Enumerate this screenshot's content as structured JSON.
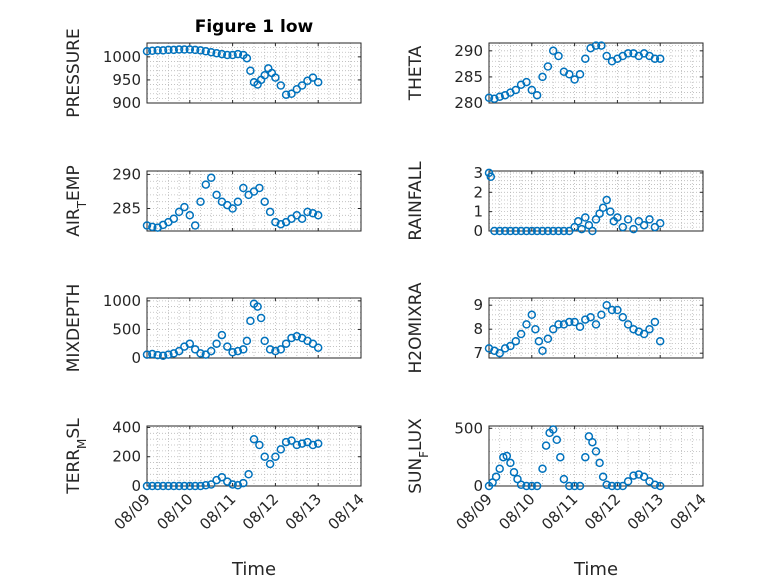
{
  "figure": {
    "title": "Figure 1 low",
    "xlabel": "Time"
  },
  "colors": {
    "marker": "#0072BD",
    "axis": "#262626",
    "grid": "#b9b9b9",
    "background": "#ffffff"
  },
  "chart_data": [
    {
      "type": "scatter",
      "ylabel": "PRESSURE",
      "title": "Figure 1 low",
      "grid": true,
      "marker": "o",
      "ylim": [
        900,
        1030
      ],
      "yticks": [
        900,
        950,
        1000
      ],
      "ytick_labels": [
        "900",
        "950",
        "1000"
      ],
      "xlim": [
        "08/09",
        "08/14"
      ],
      "xticks": [
        "08/09",
        "08/10",
        "08/11",
        "08/12",
        "08/13",
        "08/14"
      ],
      "x": [
        "08/09 00:00",
        "08/09 03:00",
        "08/09 06:00",
        "08/09 09:00",
        "08/09 12:00",
        "08/09 15:00",
        "08/09 18:00",
        "08/09 21:00",
        "08/10 00:00",
        "08/10 03:00",
        "08/10 06:00",
        "08/10 09:00",
        "08/10 12:00",
        "08/10 15:00",
        "08/10 18:00",
        "08/10 21:00",
        "08/11 00:00",
        "08/11 03:00",
        "08/11 06:00",
        "08/11 08:00",
        "08/11 10:00",
        "08/11 12:00",
        "08/11 14:00",
        "08/11 16:00",
        "08/11 18:00",
        "08/11 20:00",
        "08/11 22:00",
        "08/12 00:00",
        "08/12 03:00",
        "08/12 06:00",
        "08/12 09:00",
        "08/12 12:00",
        "08/12 15:00",
        "08/12 18:00",
        "08/12 21:00",
        "08/13 00:00"
      ],
      "y": [
        1012,
        1013,
        1014,
        1014,
        1015,
        1015,
        1016,
        1016,
        1016,
        1015,
        1014,
        1012,
        1010,
        1008,
        1006,
        1004,
        1004,
        1006,
        1004,
        997,
        970,
        945,
        940,
        950,
        960,
        975,
        965,
        955,
        938,
        918,
        920,
        930,
        938,
        948,
        955,
        945
      ]
    },
    {
      "type": "scatter",
      "ylabel": "THETA",
      "grid": true,
      "marker": "o",
      "ylim": [
        280,
        291.5
      ],
      "yticks": [
        280,
        285,
        290
      ],
      "ytick_labels": [
        "280",
        "285",
        "290"
      ],
      "xlim": [
        "08/09",
        "08/14"
      ],
      "xticks": [
        "08/09",
        "08/10",
        "08/11",
        "08/12",
        "08/13",
        "08/14"
      ],
      "x": [
        "08/09 00:00",
        "08/09 03:00",
        "08/09 06:00",
        "08/09 09:00",
        "08/09 12:00",
        "08/09 15:00",
        "08/09 18:00",
        "08/09 21:00",
        "08/10 00:00",
        "08/10 03:00",
        "08/10 06:00",
        "08/10 09:00",
        "08/10 12:00",
        "08/10 15:00",
        "08/10 18:00",
        "08/10 21:00",
        "08/11 00:00",
        "08/11 03:00",
        "08/11 06:00",
        "08/11 09:00",
        "08/11 12:00",
        "08/11 15:00",
        "08/11 18:00",
        "08/11 21:00",
        "08/12 00:00",
        "08/12 03:00",
        "08/12 06:00",
        "08/12 09:00",
        "08/12 12:00",
        "08/12 15:00",
        "08/12 18:00",
        "08/12 21:00",
        "08/13 00:00"
      ],
      "y": [
        281,
        280.8,
        281.2,
        281.5,
        282,
        282.5,
        283.5,
        284,
        282.5,
        281.5,
        285,
        287,
        290,
        289,
        286,
        285.5,
        284.5,
        285.5,
        288.5,
        290.5,
        291,
        291,
        289,
        288,
        288.5,
        289,
        289.5,
        289.5,
        289,
        289.5,
        289,
        288.5,
        288.5
      ]
    },
    {
      "type": "scatter",
      "ylabel": "AIR_TEMP",
      "grid": true,
      "marker": "o",
      "ylim": [
        281.7,
        290.5
      ],
      "yticks": [
        285,
        290
      ],
      "ytick_labels": [
        "285",
        "290"
      ],
      "xlim": [
        "08/09",
        "08/14"
      ],
      "xticks": [
        "08/09",
        "08/10",
        "08/11",
        "08/12",
        "08/13",
        "08/14"
      ],
      "x": [
        "08/09 00:00",
        "08/09 03:00",
        "08/09 06:00",
        "08/09 09:00",
        "08/09 12:00",
        "08/09 15:00",
        "08/09 18:00",
        "08/09 21:00",
        "08/10 00:00",
        "08/10 03:00",
        "08/10 06:00",
        "08/10 09:00",
        "08/10 12:00",
        "08/10 15:00",
        "08/10 18:00",
        "08/10 21:00",
        "08/11 00:00",
        "08/11 03:00",
        "08/11 06:00",
        "08/11 09:00",
        "08/11 12:00",
        "08/11 15:00",
        "08/11 18:00",
        "08/11 21:00",
        "08/12 00:00",
        "08/12 03:00",
        "08/12 06:00",
        "08/12 09:00",
        "08/12 12:00",
        "08/12 15:00",
        "08/12 18:00",
        "08/12 21:00",
        "08/13 00:00"
      ],
      "y": [
        282.5,
        282.3,
        282.2,
        282.6,
        283,
        283.5,
        284.5,
        285.2,
        284,
        282.5,
        286,
        288.5,
        289.5,
        287,
        286,
        285.5,
        285,
        286,
        288,
        287,
        287.5,
        288,
        286,
        284.5,
        283,
        282.7,
        283,
        283.5,
        284,
        283.5,
        284.5,
        284.3,
        284
      ]
    },
    {
      "type": "scatter",
      "ylabel": "RAINFALL",
      "grid": true,
      "marker": "o",
      "ylim": [
        0,
        3.1
      ],
      "yticks": [
        0,
        1,
        2,
        3
      ],
      "ytick_labels": [
        "0",
        "1",
        "2",
        "3"
      ],
      "xlim": [
        "08/09",
        "08/14"
      ],
      "xticks": [
        "08/09",
        "08/10",
        "08/11",
        "08/12",
        "08/13",
        "08/14"
      ],
      "x": [
        "08/09 00:00",
        "08/09 01:00",
        "08/09 03:00",
        "08/09 06:00",
        "08/09 09:00",
        "08/09 12:00",
        "08/09 15:00",
        "08/09 18:00",
        "08/09 21:00",
        "08/10 00:00",
        "08/10 03:00",
        "08/10 06:00",
        "08/10 09:00",
        "08/10 12:00",
        "08/10 15:00",
        "08/10 18:00",
        "08/10 21:00",
        "08/11 00:00",
        "08/11 02:00",
        "08/11 04:00",
        "08/11 06:00",
        "08/11 08:00",
        "08/11 10:00",
        "08/11 12:00",
        "08/11 14:00",
        "08/11 16:00",
        "08/11 18:00",
        "08/11 20:00",
        "08/11 22:00",
        "08/12 00:00",
        "08/12 03:00",
        "08/12 06:00",
        "08/12 09:00",
        "08/12 12:00",
        "08/12 15:00",
        "08/12 18:00",
        "08/12 21:00",
        "08/13 00:00"
      ],
      "y": [
        3,
        2.8,
        0,
        0,
        0,
        0,
        0,
        0,
        0,
        0,
        0,
        0,
        0,
        0,
        0,
        0,
        0,
        0.2,
        0.5,
        0.1,
        0.7,
        0.3,
        0,
        0.6,
        0.9,
        1.2,
        1.6,
        1.0,
        0.5,
        0.7,
        0.2,
        0.6,
        0.1,
        0.5,
        0.3,
        0.6,
        0.2,
        0.4
      ]
    },
    {
      "type": "scatter",
      "ylabel": "MIXDEPTH",
      "grid": true,
      "marker": "o",
      "ylim": [
        0,
        1050
      ],
      "yticks": [
        0,
        500,
        1000
      ],
      "ytick_labels": [
        "0",
        "500",
        "1000"
      ],
      "xlim": [
        "08/09",
        "08/14"
      ],
      "xticks": [
        "08/09",
        "08/10",
        "08/11",
        "08/12",
        "08/13",
        "08/14"
      ],
      "x": [
        "08/09 00:00",
        "08/09 03:00",
        "08/09 06:00",
        "08/09 09:00",
        "08/09 12:00",
        "08/09 15:00",
        "08/09 18:00",
        "08/09 21:00",
        "08/10 00:00",
        "08/10 03:00",
        "08/10 06:00",
        "08/10 09:00",
        "08/10 12:00",
        "08/10 15:00",
        "08/10 18:00",
        "08/10 21:00",
        "08/11 00:00",
        "08/11 03:00",
        "08/11 06:00",
        "08/11 08:00",
        "08/11 10:00",
        "08/11 12:00",
        "08/11 14:00",
        "08/11 16:00",
        "08/11 18:00",
        "08/11 21:00",
        "08/12 00:00",
        "08/12 03:00",
        "08/12 06:00",
        "08/12 09:00",
        "08/12 12:00",
        "08/12 15:00",
        "08/12 18:00",
        "08/12 21:00",
        "08/13 00:00"
      ],
      "y": [
        60,
        70,
        50,
        40,
        60,
        80,
        120,
        200,
        250,
        150,
        80,
        60,
        120,
        250,
        400,
        200,
        100,
        120,
        150,
        300,
        650,
        950,
        900,
        700,
        300,
        150,
        120,
        150,
        250,
        350,
        380,
        350,
        300,
        250,
        180
      ]
    },
    {
      "type": "scatter",
      "ylabel": "H2OMIXRA",
      "grid": true,
      "marker": "o",
      "ylim": [
        6.8,
        9.3
      ],
      "yticks": [
        7,
        8,
        9
      ],
      "ytick_labels": [
        "7",
        "8",
        "9"
      ],
      "xlim": [
        "08/09",
        "08/14"
      ],
      "xticks": [
        "08/09",
        "08/10",
        "08/11",
        "08/12",
        "08/13",
        "08/14"
      ],
      "x": [
        "08/09 00:00",
        "08/09 03:00",
        "08/09 06:00",
        "08/09 09:00",
        "08/09 12:00",
        "08/09 15:00",
        "08/09 18:00",
        "08/09 21:00",
        "08/10 00:00",
        "08/10 02:00",
        "08/10 04:00",
        "08/10 06:00",
        "08/10 09:00",
        "08/10 12:00",
        "08/10 15:00",
        "08/10 18:00",
        "08/10 21:00",
        "08/11 00:00",
        "08/11 03:00",
        "08/11 06:00",
        "08/11 09:00",
        "08/11 12:00",
        "08/11 15:00",
        "08/11 18:00",
        "08/11 21:00",
        "08/12 00:00",
        "08/12 03:00",
        "08/12 06:00",
        "08/12 09:00",
        "08/12 12:00",
        "08/12 15:00",
        "08/12 18:00",
        "08/12 21:00",
        "08/13 00:00"
      ],
      "y": [
        7.2,
        7.1,
        7.0,
        7.2,
        7.3,
        7.5,
        7.8,
        8.2,
        8.6,
        8.0,
        7.5,
        7.1,
        7.6,
        8.0,
        8.2,
        8.2,
        8.3,
        8.3,
        8.1,
        8.4,
        8.5,
        8.2,
        8.6,
        9.0,
        8.8,
        8.8,
        8.5,
        8.2,
        8.0,
        7.9,
        7.8,
        8.0,
        8.3,
        7.5
      ]
    },
    {
      "type": "scatter",
      "ylabel": "TERR_MSL",
      "grid": true,
      "marker": "o",
      "ylim": [
        0,
        410
      ],
      "yticks": [
        0,
        200,
        400
      ],
      "ytick_labels": [
        "0",
        "200",
        "400"
      ],
      "xlim": [
        "08/09",
        "08/14"
      ],
      "xticks": [
        "08/09",
        "08/10",
        "08/11",
        "08/12",
        "08/13",
        "08/14"
      ],
      "x": [
        "08/09 00:00",
        "08/09 03:00",
        "08/09 06:00",
        "08/09 09:00",
        "08/09 12:00",
        "08/09 15:00",
        "08/09 18:00",
        "08/09 21:00",
        "08/10 00:00",
        "08/10 03:00",
        "08/10 06:00",
        "08/10 09:00",
        "08/10 12:00",
        "08/10 15:00",
        "08/10 18:00",
        "08/10 21:00",
        "08/11 00:00",
        "08/11 03:00",
        "08/11 06:00",
        "08/11 09:00",
        "08/11 12:00",
        "08/11 15:00",
        "08/11 18:00",
        "08/11 21:00",
        "08/12 00:00",
        "08/12 03:00",
        "08/12 06:00",
        "08/12 09:00",
        "08/12 12:00",
        "08/12 15:00",
        "08/12 18:00",
        "08/12 21:00",
        "08/13 00:00"
      ],
      "y": [
        0,
        0,
        0,
        0,
        0,
        0,
        0,
        0,
        0,
        0,
        0,
        5,
        10,
        40,
        60,
        30,
        10,
        5,
        20,
        80,
        320,
        280,
        200,
        150,
        200,
        250,
        300,
        310,
        280,
        290,
        300,
        280,
        290
      ]
    },
    {
      "type": "scatter",
      "ylabel": "SUN_FLUX",
      "grid": true,
      "marker": "o",
      "ylim": [
        0,
        520
      ],
      "yticks": [
        0,
        500
      ],
      "ytick_labels": [
        "0",
        "500"
      ],
      "xlim": [
        "08/09",
        "08/14"
      ],
      "xticks": [
        "08/09",
        "08/10",
        "08/11",
        "08/12",
        "08/13",
        "08/14"
      ],
      "x": [
        "08/09 00:00",
        "08/09 02:00",
        "08/09 04:00",
        "08/09 06:00",
        "08/09 08:00",
        "08/09 10:00",
        "08/09 12:00",
        "08/09 14:00",
        "08/09 16:00",
        "08/09 18:00",
        "08/09 21:00",
        "08/10 00:00",
        "08/10 03:00",
        "08/10 06:00",
        "08/10 08:00",
        "08/10 10:00",
        "08/10 12:00",
        "08/10 14:00",
        "08/10 16:00",
        "08/10 18:00",
        "08/10 21:00",
        "08/11 00:00",
        "08/11 03:00",
        "08/11 06:00",
        "08/11 08:00",
        "08/11 10:00",
        "08/11 12:00",
        "08/11 14:00",
        "08/11 16:00",
        "08/11 18:00",
        "08/11 21:00",
        "08/12 00:00",
        "08/12 03:00",
        "08/12 06:00",
        "08/12 09:00",
        "08/12 12:00",
        "08/12 15:00",
        "08/12 18:00",
        "08/12 21:00",
        "08/13 00:00"
      ],
      "y": [
        0,
        30,
        80,
        150,
        250,
        260,
        200,
        120,
        60,
        10,
        0,
        0,
        0,
        150,
        350,
        460,
        490,
        400,
        250,
        60,
        0,
        0,
        0,
        250,
        430,
        380,
        300,
        200,
        80,
        10,
        0,
        0,
        0,
        40,
        90,
        100,
        80,
        40,
        10,
        0
      ]
    }
  ]
}
